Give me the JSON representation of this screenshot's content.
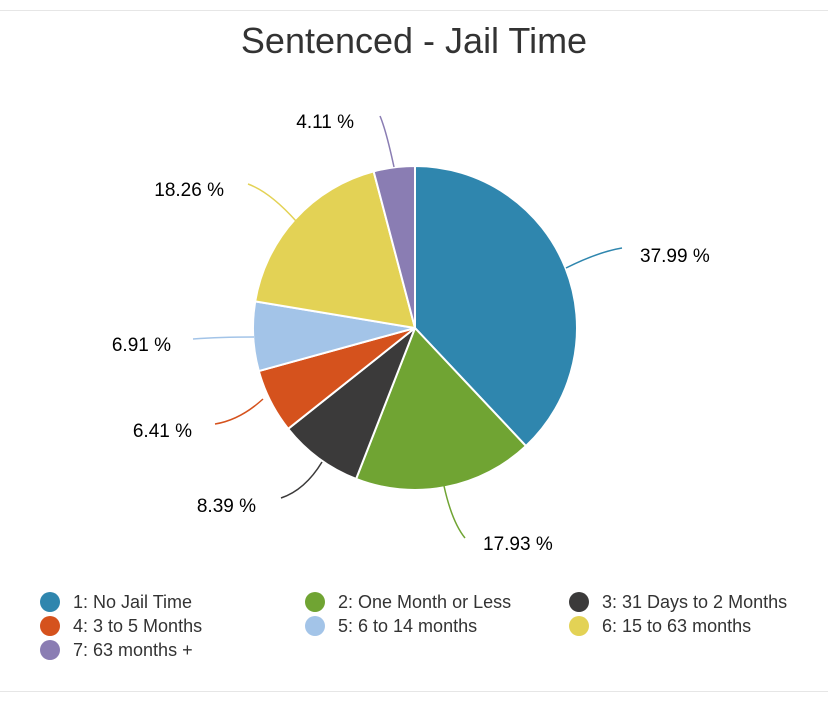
{
  "chart_data": {
    "type": "pie",
    "title": "Sentenced - Jail Time",
    "legend_position": "bottom",
    "slices": [
      {
        "label": "1: No Jail Time",
        "value": 37.99,
        "value_label": "37.99 %",
        "color": "#2f86ae"
      },
      {
        "label": "2: One Month or Less",
        "value": 17.93,
        "value_label": "17.93 %",
        "color": "#70a433"
      },
      {
        "label": "3: 31 Days to 2 Months",
        "value": 8.39,
        "value_label": "8.39 %",
        "color": "#3b3a3a"
      },
      {
        "label": "4: 3 to 5 Months",
        "value": 6.41,
        "value_label": "6.41 %",
        "color": "#d5521d"
      },
      {
        "label": "5: 6 to 14 months",
        "value": 6.91,
        "value_label": "6.91 %",
        "color": "#a3c4e8"
      },
      {
        "label": "6: 15 to 63 months",
        "value": 18.26,
        "value_label": "18.26 %",
        "color": "#e3d255"
      },
      {
        "label": "7: 63 months +",
        "value": 4.11,
        "value_label": "4.11 %",
        "color": "#8a7db3"
      }
    ]
  }
}
